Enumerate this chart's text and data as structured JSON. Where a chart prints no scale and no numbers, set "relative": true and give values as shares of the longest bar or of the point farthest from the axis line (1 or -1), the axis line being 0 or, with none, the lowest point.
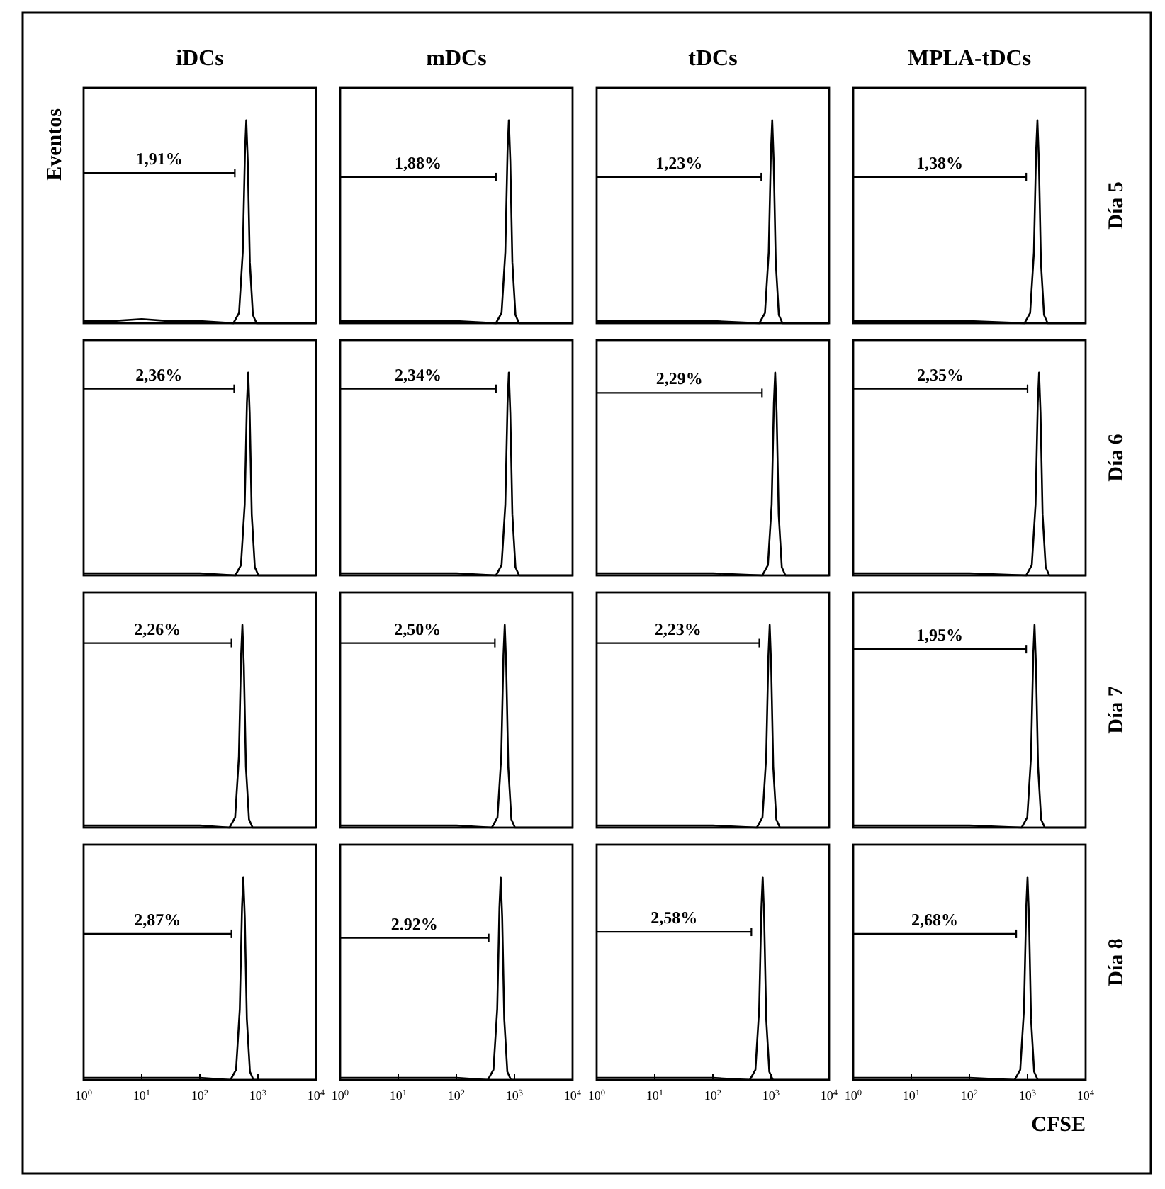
{
  "chart_data": [
    {
      "type": "line",
      "title": "iDCs",
      "ylabel": "Eventos",
      "relative": true,
      "log": "x",
      "xlim": [
        1,
        10000
      ],
      "annotations": [
        "1,91%"
      ],
      "series": [
        {
          "color": "#000000",
          "x": [
            1,
            3,
            10,
            30,
            100,
            378,
            473,
            548,
            599,
            630,
            668,
            725,
            819,
            945,
            10000
          ],
          "values": [
            0.01,
            0.01,
            0.02,
            0.01,
            0.01,
            0,
            0.05,
            0.35,
            0.85,
            1,
            0.8,
            0.3,
            0.04,
            0,
            0
          ]
        },
        {
          "color": "#000000",
          "x": [
            1,
            400
          ],
          "values": [
            0.74,
            0.74
          ]
        }
      ]
    },
    {
      "type": "line",
      "title": "mDCs",
      "relative": true,
      "log": "x",
      "xlim": [
        1,
        10000
      ],
      "annotations": [
        "1,88%"
      ],
      "series": [
        {
          "color": "#000000",
          "x": [
            1,
            3,
            10,
            30,
            100,
            480,
            600,
            696,
            760,
            800,
            848,
            920,
            1040,
            1200,
            10000
          ],
          "values": [
            0.01,
            0.01,
            0.01,
            0.01,
            0.01,
            0,
            0.05,
            0.35,
            0.85,
            1,
            0.8,
            0.3,
            0.04,
            0,
            0
          ]
        },
        {
          "color": "#000000",
          "x": [
            1,
            480
          ],
          "values": [
            0.72,
            0.72
          ]
        }
      ]
    },
    {
      "type": "line",
      "title": "tDCs",
      "relative": true,
      "log": "x",
      "xlim": [
        1,
        10000
      ],
      "annotations": [
        "1,23%"
      ],
      "series": [
        {
          "color": "#000000",
          "x": [
            1,
            3,
            10,
            30,
            100,
            630,
            788,
            914,
            998,
            1050,
            1113,
            1208,
            1365,
            1575,
            10000
          ],
          "values": [
            0.01,
            0.01,
            0.01,
            0.01,
            0.01,
            0,
            0.05,
            0.35,
            0.85,
            1,
            0.8,
            0.3,
            0.04,
            0,
            0
          ]
        },
        {
          "color": "#000000",
          "x": [
            1,
            680
          ],
          "values": [
            0.72,
            0.72
          ]
        }
      ]
    },
    {
      "type": "line",
      "title": "MPLA-tDCs",
      "y2label": "Día 5",
      "relative": true,
      "log": "x",
      "xlim": [
        1,
        10000
      ],
      "annotations": [
        "1,38%"
      ],
      "series": [
        {
          "color": "#000000",
          "x": [
            1,
            3,
            10,
            30,
            100,
            888,
            1110,
            1288,
            1406,
            1480,
            1569,
            1702,
            1924,
            2220,
            10000
          ],
          "values": [
            0.01,
            0.01,
            0.01,
            0.01,
            0.01,
            0,
            0.05,
            0.35,
            0.85,
            1,
            0.8,
            0.3,
            0.04,
            0,
            0
          ]
        },
        {
          "color": "#000000",
          "x": [
            1,
            950
          ],
          "values": [
            0.72,
            0.72
          ]
        }
      ]
    },
    {
      "type": "line",
      "relative": true,
      "log": "x",
      "xlim": [
        1,
        10000
      ],
      "annotations": [
        "2,36%"
      ],
      "series": [
        {
          "color": "#000000",
          "x": [
            1,
            3,
            10,
            30,
            100,
            408,
            510,
            592,
            646,
            680,
            721,
            782,
            884,
            1020,
            10000
          ],
          "values": [
            0.01,
            0.01,
            0.01,
            0.01,
            0.01,
            0,
            0.05,
            0.35,
            0.85,
            1,
            0.8,
            0.3,
            0.04,
            0,
            0
          ]
        },
        {
          "color": "#000000",
          "x": [
            1,
            390
          ],
          "values": [
            0.92,
            0.92
          ]
        }
      ]
    },
    {
      "type": "line",
      "relative": true,
      "log": "x",
      "xlim": [
        1,
        10000
      ],
      "annotations": [
        "2,34%"
      ],
      "series": [
        {
          "color": "#000000",
          "x": [
            1,
            3,
            10,
            30,
            100,
            480,
            600,
            696,
            760,
            800,
            848,
            920,
            1040,
            1200,
            10000
          ],
          "values": [
            0.01,
            0.01,
            0.01,
            0.01,
            0.01,
            0,
            0.05,
            0.35,
            0.85,
            1,
            0.8,
            0.3,
            0.04,
            0,
            0
          ]
        },
        {
          "color": "#000000",
          "x": [
            1,
            480
          ],
          "values": [
            0.92,
            0.92
          ]
        }
      ]
    },
    {
      "type": "line",
      "relative": true,
      "log": "x",
      "xlim": [
        1,
        10000
      ],
      "annotations": [
        "2,29%"
      ],
      "series": [
        {
          "color": "#000000",
          "x": [
            1,
            3,
            10,
            30,
            100,
            708,
            885,
            1027,
            1121,
            1180,
            1251,
            1357,
            1534,
            1770,
            10000
          ],
          "values": [
            0.01,
            0.01,
            0.01,
            0.01,
            0.01,
            0,
            0.05,
            0.35,
            0.85,
            1,
            0.8,
            0.3,
            0.04,
            0,
            0
          ]
        },
        {
          "color": "#000000",
          "x": [
            1,
            700
          ],
          "values": [
            0.9,
            0.9
          ]
        }
      ]
    },
    {
      "type": "line",
      "y2label": "Día 6",
      "relative": true,
      "log": "x",
      "xlim": [
        1,
        10000
      ],
      "annotations": [
        "2,35%"
      ],
      "series": [
        {
          "color": "#000000",
          "x": [
            1,
            3,
            10,
            30,
            100,
            948,
            1185,
            1375,
            1501,
            1580,
            1675,
            1817,
            2054,
            2370,
            10000
          ],
          "values": [
            0.01,
            0.01,
            0.01,
            0.01,
            0.01,
            0,
            0.05,
            0.35,
            0.85,
            1,
            0.8,
            0.3,
            0.04,
            0,
            0
          ]
        },
        {
          "color": "#000000",
          "x": [
            1,
            1000
          ],
          "values": [
            0.92,
            0.92
          ]
        }
      ]
    },
    {
      "type": "line",
      "relative": true,
      "log": "x",
      "xlim": [
        1,
        10000
      ],
      "annotations": [
        "2,26%"
      ],
      "series": [
        {
          "color": "#000000",
          "x": [
            1,
            3,
            10,
            30,
            100,
            324,
            405,
            470,
            513,
            540,
            572,
            621,
            702,
            810,
            10000
          ],
          "values": [
            0.01,
            0.01,
            0.01,
            0.01,
            0.01,
            0,
            0.05,
            0.35,
            0.85,
            1,
            0.8,
            0.3,
            0.04,
            0,
            0
          ]
        },
        {
          "color": "#000000",
          "x": [
            1,
            350
          ],
          "values": [
            0.91,
            0.91
          ]
        }
      ]
    },
    {
      "type": "line",
      "relative": true,
      "log": "x",
      "xlim": [
        1,
        10000
      ],
      "annotations": [
        "2,50%"
      ],
      "series": [
        {
          "color": "#000000",
          "x": [
            1,
            3,
            10,
            30,
            100,
            408,
            510,
            592,
            646,
            680,
            721,
            782,
            884,
            1020,
            10000
          ],
          "values": [
            0.01,
            0.01,
            0.01,
            0.01,
            0.01,
            0,
            0.05,
            0.35,
            0.85,
            1,
            0.8,
            0.3,
            0.04,
            0,
            0
          ]
        },
        {
          "color": "#000000",
          "x": [
            1,
            460
          ],
          "values": [
            0.91,
            0.91
          ]
        }
      ]
    },
    {
      "type": "line",
      "relative": true,
      "log": "x",
      "xlim": [
        1,
        10000
      ],
      "annotations": [
        "2,23%"
      ],
      "series": [
        {
          "color": "#000000",
          "x": [
            1,
            3,
            10,
            30,
            100,
            570,
            713,
            827,
            903,
            950,
            1007,
            1093,
            1235,
            1425,
            10000
          ],
          "values": [
            0.01,
            0.01,
            0.01,
            0.01,
            0.01,
            0,
            0.05,
            0.35,
            0.85,
            1,
            0.8,
            0.3,
            0.04,
            0,
            0
          ]
        },
        {
          "color": "#000000",
          "x": [
            1,
            630
          ],
          "values": [
            0.91,
            0.91
          ]
        }
      ]
    },
    {
      "type": "line",
      "y2label": "Día 7",
      "relative": true,
      "log": "x",
      "xlim": [
        1,
        10000
      ],
      "annotations": [
        "1,95%"
      ],
      "series": [
        {
          "color": "#000000",
          "x": [
            1,
            3,
            10,
            30,
            100,
            792,
            990,
            1148,
            1254,
            1320,
            1399,
            1518,
            1716,
            1980,
            10000
          ],
          "values": [
            0.01,
            0.01,
            0.01,
            0.01,
            0.01,
            0,
            0.05,
            0.35,
            0.85,
            1,
            0.8,
            0.3,
            0.04,
            0,
            0
          ]
        },
        {
          "color": "#000000",
          "x": [
            1,
            950
          ],
          "values": [
            0.88,
            0.88
          ]
        }
      ]
    },
    {
      "type": "line",
      "relative": true,
      "log": "x",
      "xlim": [
        1,
        10000
      ],
      "xticks": [
        {
          "value": 1,
          "label": "10$^{0}$"
        },
        {
          "value": 10,
          "label": "10$^{1}$"
        },
        {
          "value": 100,
          "label": "10$^{2}$"
        },
        {
          "value": 1000,
          "label": "10$^{3}$"
        },
        {
          "value": 10000,
          "label": "10$^{4}$"
        }
      ],
      "tick_labels": "x",
      "annotations": [
        "2,87%"
      ],
      "series": [
        {
          "color": "#000000",
          "x": [
            1,
            3,
            10,
            30,
            100,
            336,
            420,
            487,
            532,
            560,
            594,
            644,
            728,
            840,
            10000
          ],
          "values": [
            0.01,
            0.01,
            0.01,
            0.01,
            0.01,
            0,
            0.05,
            0.35,
            0.85,
            1,
            0.8,
            0.3,
            0.04,
            0,
            0
          ]
        },
        {
          "color": "#000000",
          "x": [
            1,
            350
          ],
          "values": [
            0.72,
            0.72
          ]
        }
      ]
    },
    {
      "type": "line",
      "relative": true,
      "log": "x",
      "xlim": [
        1,
        10000
      ],
      "xticks": [
        {
          "value": 1,
          "label": "10$^{0}$"
        },
        {
          "value": 10,
          "label": "10$^{1}$"
        },
        {
          "value": 100,
          "label": "10$^{2}$"
        },
        {
          "value": 1000,
          "label": "10$^{3}$"
        },
        {
          "value": 10000,
          "label": "10$^{4}$"
        }
      ],
      "tick_labels": "x",
      "annotations": [
        "2.92%"
      ],
      "series": [
        {
          "color": "#000000",
          "x": [
            1,
            3,
            10,
            30,
            100,
            348,
            435,
            505,
            551,
            580,
            615,
            667,
            754,
            870,
            10000
          ],
          "values": [
            0.01,
            0.01,
            0.01,
            0.01,
            0.01,
            0,
            0.05,
            0.35,
            0.85,
            1,
            0.8,
            0.3,
            0.04,
            0,
            0
          ]
        },
        {
          "color": "#000000",
          "x": [
            1,
            360
          ],
          "values": [
            0.7,
            0.7
          ]
        }
      ]
    },
    {
      "type": "line",
      "relative": true,
      "log": "x",
      "xlim": [
        1,
        10000
      ],
      "xticks": [
        {
          "value": 1,
          "label": "10$^{0}$"
        },
        {
          "value": 10,
          "label": "10$^{1}$"
        },
        {
          "value": 100,
          "label": "10$^{2}$"
        },
        {
          "value": 1000,
          "label": "10$^{3}$"
        },
        {
          "value": 10000,
          "label": "10$^{4}$"
        }
      ],
      "tick_labels": "x",
      "annotations": [
        "2,58%"
      ],
      "series": [
        {
          "color": "#000000",
          "x": [
            1,
            3,
            10,
            30,
            100,
            432,
            540,
            626,
            684,
            720,
            763,
            828,
            936,
            1080,
            10000
          ],
          "values": [
            0.01,
            0.01,
            0.01,
            0.01,
            0.01,
            0,
            0.05,
            0.35,
            0.85,
            1,
            0.8,
            0.3,
            0.04,
            0,
            0
          ]
        },
        {
          "color": "#000000",
          "x": [
            1,
            460
          ],
          "values": [
            0.73,
            0.73
          ]
        }
      ]
    },
    {
      "type": "line",
      "xlabel": "CFSE",
      "y2label": "Día 8",
      "relative": true,
      "log": "x",
      "xlim": [
        1,
        10000
      ],
      "xticks": [
        {
          "value": 1,
          "label": "10$^{0}$"
        },
        {
          "value": 10,
          "label": "10$^{1}$"
        },
        {
          "value": 100,
          "label": "10$^{2}$"
        },
        {
          "value": 1000,
          "label": "10$^{3}$"
        },
        {
          "value": 10000,
          "label": "10$^{4}$"
        }
      ],
      "tick_labels": "x",
      "annotations": [
        "2,68%"
      ],
      "series": [
        {
          "color": "#000000",
          "x": [
            1,
            3,
            10,
            30,
            100,
            600,
            750,
            870,
            950,
            1000,
            1060,
            1150,
            1300,
            1500,
            10000
          ],
          "values": [
            0.01,
            0.01,
            0.01,
            0.01,
            0.01,
            0,
            0.05,
            0.35,
            0.85,
            1,
            0.8,
            0.3,
            0.04,
            0,
            0
          ]
        },
        {
          "color": "#000000",
          "x": [
            1,
            640
          ],
          "values": [
            0.72,
            0.72
          ]
        }
      ]
    }
  ]
}
